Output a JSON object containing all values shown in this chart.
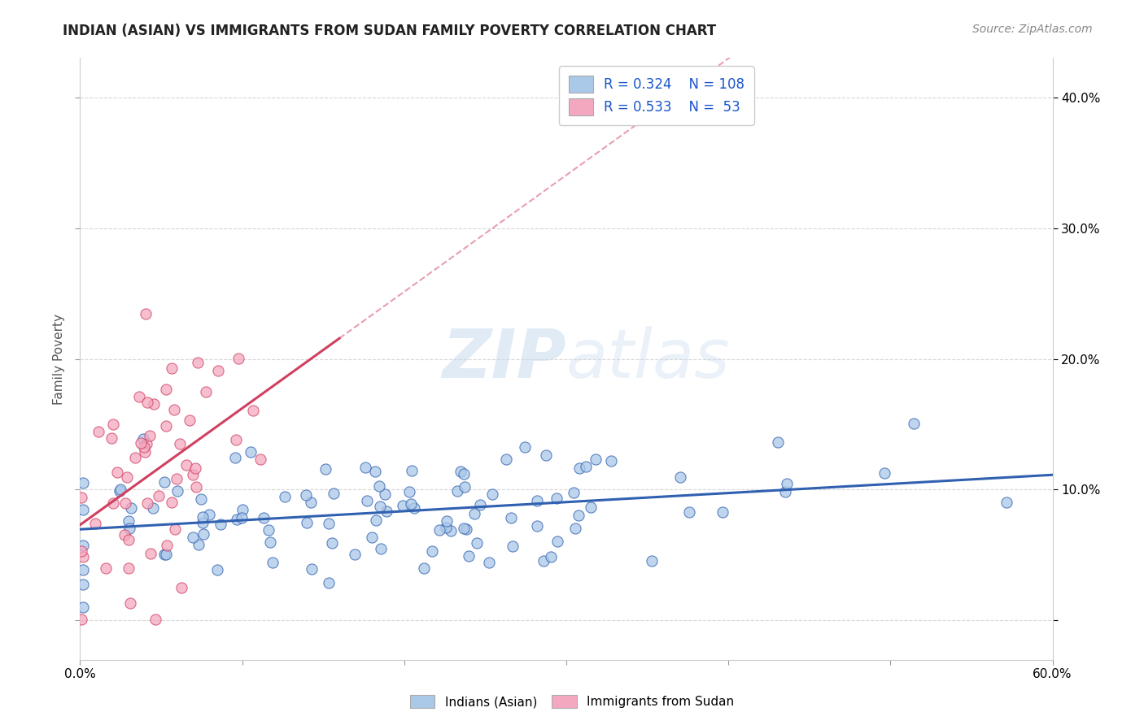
{
  "title": "INDIAN (ASIAN) VS IMMIGRANTS FROM SUDAN FAMILY POVERTY CORRELATION CHART",
  "source": "Source: ZipAtlas.com",
  "ylabel": "Family Poverty",
  "R_blue": 0.324,
  "N_blue": 108,
  "R_pink": 0.533,
  "N_pink": 53,
  "legend_label_blue": "Indians (Asian)",
  "legend_label_pink": "Immigrants from Sudan",
  "scatter_color_blue": "#aac8e8",
  "scatter_color_pink": "#f4a8c0",
  "line_color_blue": "#3060b0",
  "line_color_pink": "#d04060",
  "xlim": [
    0.0,
    0.6
  ],
  "ylim": [
    -0.03,
    0.43
  ],
  "yticks": [
    0.0,
    0.1,
    0.2,
    0.3,
    0.4
  ],
  "ytick_labels": [
    "",
    "10.0%",
    "20.0%",
    "30.0%",
    "40.0%"
  ],
  "watermark_text": "ZIPatlas",
  "title_fontsize": 12,
  "source_fontsize": 10,
  "axis_label_fontsize": 11,
  "legend_fontsize": 12,
  "blue_seed": 17,
  "pink_seed": 99
}
